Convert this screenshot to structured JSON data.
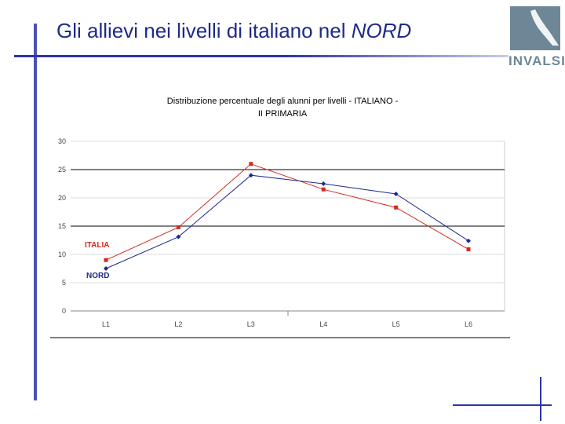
{
  "slide": {
    "title_prefix": "Gli allievi nei livelli di italiano nel ",
    "title_emphasis": "NORD"
  },
  "logo": {
    "text": "INVALSI",
    "color": "#6d8796"
  },
  "chart_data": {
    "type": "line",
    "title_line1": "Distribuzione percentuale degli alunni per livelli - ITALIANO -",
    "title_line2": "II PRIMARIA",
    "categories": [
      "L1",
      "L2",
      "L3",
      "L4",
      "L5",
      "L6"
    ],
    "ylim": [
      0,
      30
    ],
    "yticks": [
      0,
      5,
      10,
      15,
      20,
      25,
      30
    ],
    "grid": true,
    "series": [
      {
        "name": "ITALIA",
        "color": "#d42a1e",
        "marker": "square",
        "values": [
          9.0,
          14.8,
          26.0,
          21.5,
          18.3,
          10.9
        ]
      },
      {
        "name": "NORD",
        "color": "#1f2a8a",
        "marker": "diamond",
        "values": [
          7.5,
          13.1,
          24.0,
          22.5,
          20.7,
          12.4
        ]
      }
    ]
  },
  "colors": {
    "accent_blue": "#2b34a8",
    "grid": "#000000"
  }
}
